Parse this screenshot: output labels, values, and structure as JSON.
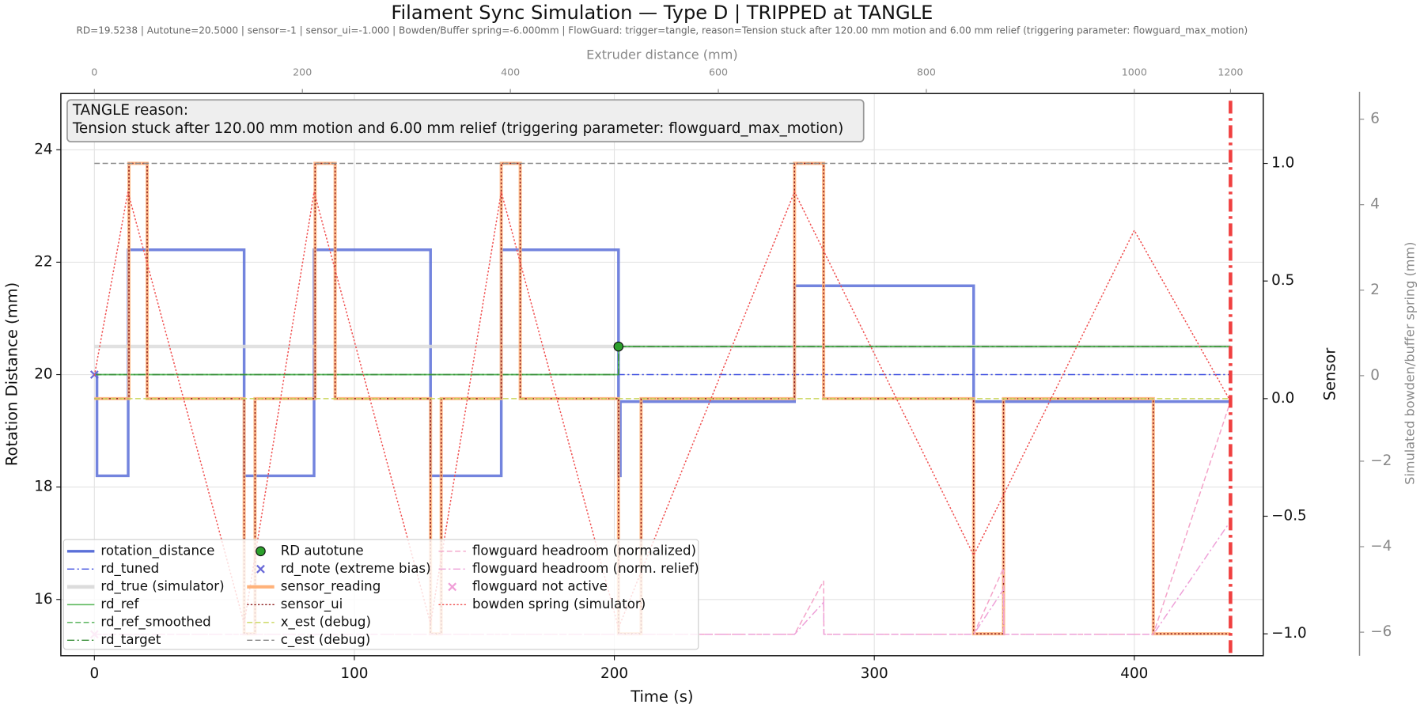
{
  "chart_data": {
    "type": "line",
    "title": "Filament Sync Simulation — Type D | TRIPPED at TANGLE",
    "subtitle": "RD=19.5238 | Autotune=20.5000 | sensor=-1 | sensor_ui=-1.000 | Bowden/Buffer spring=-6.000mm | FlowGuard: trigger=tangle, reason=Tension stuck after 120.00 mm motion and 6.00 mm relief (triggering parameter: flowguard_max_motion)",
    "x_label": "Time (s)",
    "y_label": "Rotation Distance (mm)",
    "y2_label": "Sensor",
    "y3_label": "Simulated bowden/buffer spring (mm)",
    "x2_label": "Extruder distance (mm)",
    "xlim": [
      -12.9,
      449.6
    ],
    "xticks": [
      0,
      100,
      200,
      300,
      400
    ],
    "x2ticks": [
      {
        "value": 0,
        "label": "0"
      },
      {
        "value": 80,
        "label": "200"
      },
      {
        "value": 160,
        "label": "400"
      },
      {
        "value": 240,
        "label": "600"
      },
      {
        "value": 320,
        "label": "800"
      },
      {
        "value": 400,
        "label": "1000"
      },
      {
        "value": 437,
        "label": "1200"
      }
    ],
    "ylim": [
      15,
      25
    ],
    "yticks": [
      16,
      18,
      20,
      22,
      24
    ],
    "y2lim": [
      -1.093,
      1.297
    ],
    "y2ticks": [
      {
        "value": -1,
        "label": "−1.0"
      },
      {
        "value": -0.5,
        "label": "−0.5"
      },
      {
        "value": 0,
        "label": "0.0"
      },
      {
        "value": 0.5,
        "label": "0.5"
      },
      {
        "value": 1,
        "label": "1.0"
      }
    ],
    "y3lim": [
      -6.55,
      6.6
    ],
    "y3ticks": [
      {
        "value": -6,
        "label": "−6"
      },
      {
        "value": -4,
        "label": "−4"
      },
      {
        "value": -2,
        "label": "−2"
      },
      0,
      2,
      4,
      6
    ],
    "grid": true,
    "legend_loc": "lower left",
    "annotation": {
      "title": "TANGLE reason:",
      "text": "Tension stuck after 120.00 mm motion and 6.00 mm relief (triggering parameter: flowguard_max_motion)"
    },
    "trip_line": {
      "x": 437,
      "color": "#f04040"
    },
    "series": [
      {
        "name": "rotation_distance",
        "color": "#5a6fd8",
        "axis": "y",
        "style": "solid",
        "width": 3,
        "step": true,
        "x": [
          0,
          1,
          13,
          57.6,
          84.5,
          129.3,
          156.5,
          201.6,
          202.3,
          269.3,
          338.2,
          437
        ],
        "values": [
          20,
          18.2,
          22.22,
          18.2,
          22.22,
          18.2,
          22.22,
          18.2,
          19.52,
          21.58,
          19.52,
          19.52
        ]
      },
      {
        "name": "rd_tuned",
        "color": "#4050e0",
        "axis": "y",
        "style": "dashdot",
        "width": 1.3,
        "step": false,
        "x": [
          0,
          437
        ],
        "values": [
          20,
          20
        ]
      },
      {
        "name": "rd_true (simulator)",
        "color": "#dcdcdc",
        "axis": "y",
        "style": "solid",
        "width": 4,
        "step": false,
        "x": [
          0,
          437
        ],
        "values": [
          20.5,
          20.5
        ]
      },
      {
        "name": "rd_ref",
        "color": "#5cb85c",
        "axis": "y",
        "style": "solid",
        "width": 1.5,
        "step": true,
        "x": [
          0,
          201.6,
          437
        ],
        "values": [
          20,
          20.5,
          20.5
        ]
      },
      {
        "name": "rd_ref_smoothed",
        "color": "#4caf50",
        "axis": "y",
        "style": "dashed",
        "width": 1.3,
        "step": true,
        "x": [
          0,
          201.6,
          437
        ],
        "values": [
          20,
          20.5,
          20.5
        ]
      },
      {
        "name": "rd_target",
        "color": "#3a8f3a",
        "axis": "y",
        "style": "dashdot",
        "width": 1.3,
        "step": true,
        "x": [
          0,
          201.6,
          437
        ],
        "values": [
          20,
          20.5,
          20.5
        ]
      },
      {
        "name": "RD autotune",
        "color": "#2ca02c",
        "axis": "y",
        "style": "none",
        "marker": "o",
        "x": [
          201.6
        ],
        "values": [
          20.5
        ]
      },
      {
        "name": "rd_note (extreme bias)",
        "color": "#6a6ad8",
        "axis": "y",
        "style": "none",
        "marker": "x",
        "x": [
          0
        ],
        "values": [
          20
        ]
      },
      {
        "name": "sensor_reading",
        "color": "#ffb27a",
        "axis": "y2",
        "style": "solid",
        "width": 3.5,
        "step": true,
        "x": [
          0,
          13.3,
          20.3,
          57.6,
          61.8,
          84.9,
          92.6,
          129.3,
          133.4,
          156.5,
          163.8,
          201.6,
          210.3,
          269.3,
          280.5,
          338.2,
          349.7,
          407.3,
          437
        ],
        "values": [
          0,
          1,
          0,
          -1,
          0,
          1,
          0,
          -1,
          0,
          1,
          0,
          -1,
          0,
          1,
          0,
          -1,
          0,
          -1,
          -1
        ]
      },
      {
        "name": "sensor_ui",
        "color": "#8b1a1a",
        "axis": "y2",
        "style": "dotted",
        "width": 1.3,
        "step": true,
        "x": [
          0,
          13.3,
          20.3,
          57.6,
          61.8,
          84.9,
          92.6,
          129.3,
          133.4,
          156.5,
          163.8,
          201.6,
          210.3,
          269.3,
          280.5,
          338.2,
          349.7,
          407.3,
          437
        ],
        "values": [
          0,
          1,
          0,
          -1,
          0,
          1,
          0,
          -1,
          0,
          1,
          0,
          -1,
          0,
          1,
          0,
          -1,
          0,
          -1,
          -1
        ]
      },
      {
        "name": "x_est (debug)",
        "color": "#c9d65a",
        "axis": "y2",
        "style": "dashed",
        "width": 1.3,
        "step": false,
        "x": [
          0,
          437
        ],
        "values": [
          0,
          0
        ]
      },
      {
        "name": "c_est (debug)",
        "color": "#888888",
        "axis": "y2",
        "style": "dashed",
        "width": 1.3,
        "step": false,
        "x": [
          0,
          437
        ],
        "values": [
          1,
          1
        ]
      },
      {
        "name": "flowguard headroom (normalized)",
        "color": "#f4a3c9",
        "axis": "y3",
        "style": "dashed",
        "width": 1.3,
        "step": false,
        "x": [
          0,
          269.3,
          280.5,
          280.6,
          338.2,
          349.7,
          349.8,
          407.3,
          437
        ],
        "values": [
          -6.05,
          -6.05,
          -4.8,
          -6.05,
          -6.05,
          -4.5,
          -6.05,
          -6.05,
          -0.6
        ]
      },
      {
        "name": "flowguard headroom (norm. relief)",
        "color": "#eea0d8",
        "axis": "y3",
        "style": "dashdot",
        "width": 1.3,
        "step": false,
        "x": [
          0,
          269.3,
          280.5,
          280.6,
          338.2,
          349.7,
          349.8,
          407.3,
          437
        ],
        "values": [
          -6.05,
          -6.05,
          -5.3,
          -6.05,
          -6.05,
          -5.0,
          -6.05,
          -6.05,
          -3.4
        ]
      },
      {
        "name": "flowguard not active",
        "color": "#f0a0d8",
        "axis": "y3",
        "style": "none",
        "marker": "x",
        "x": [
          0
        ],
        "values": [
          -6.05
        ]
      },
      {
        "name": "bowden spring (simulator)",
        "color": "#f05050",
        "axis": "y3",
        "style": "dotted",
        "width": 1.3,
        "step": false,
        "x": [
          0,
          12.9,
          57.6,
          84.5,
          129.3,
          156.5,
          201.6,
          269.3,
          338.2,
          400,
          437
        ],
        "values": [
          0,
          4.3,
          -5.8,
          4.3,
          -5.8,
          4.3,
          -5.9,
          4.3,
          -4.2,
          3.4,
          -0.6
        ]
      }
    ]
  }
}
